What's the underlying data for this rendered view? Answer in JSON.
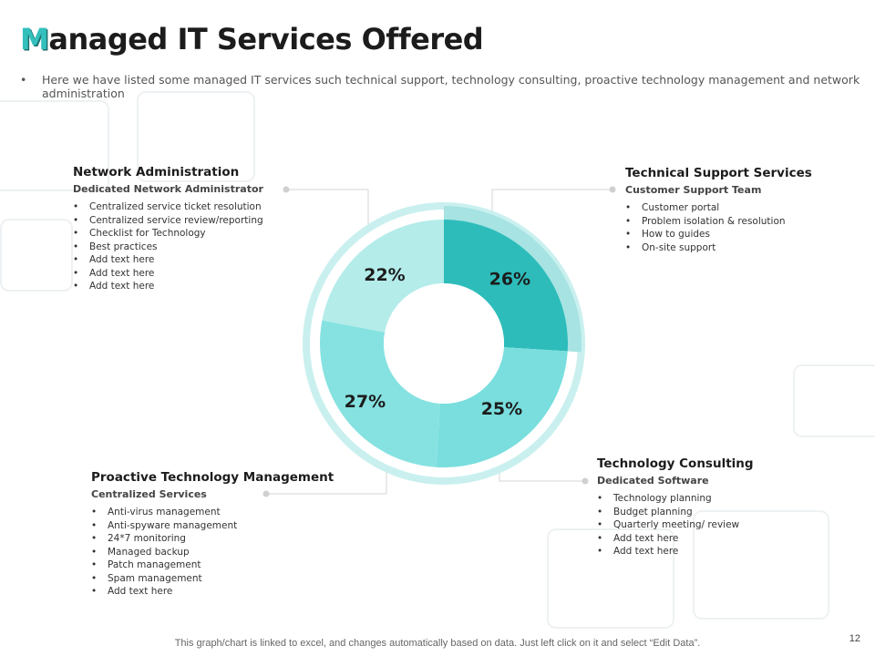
{
  "title": {
    "first_letter": "M",
    "rest": "anaged IT Services Offered"
  },
  "intro": {
    "bullet": "•",
    "text": "Here we have listed some managed IT services such technical support, technology consulting, proactive technology management and network administration"
  },
  "chart_data": {
    "type": "pie",
    "variant": "donut",
    "title": "",
    "categories": [
      "Technical Support Services",
      "Technology Consulting",
      "Proactive Technology Management",
      "Network Administration"
    ],
    "values": [
      26,
      25,
      27,
      22
    ],
    "labels": [
      "26%",
      "25%",
      "27%",
      "22%"
    ],
    "colors": [
      "#2dbcba",
      "#79dedd",
      "#86e2e1",
      "#b4ecea"
    ]
  },
  "sections": {
    "network": {
      "heading": "Network Administration",
      "subheading": "Dedicated Network Administrator",
      "items": [
        "Centralized service ticket resolution",
        "Centralized service review/reporting",
        "Checklist for Technology",
        "Best practices",
        "Add text here",
        "Add text here",
        "Add text here"
      ]
    },
    "support": {
      "heading": "Technical Support Services",
      "subheading": "Customer Support Team",
      "items": [
        "Customer portal",
        "Problem isolation & resolution",
        "How to guides",
        "On-site support"
      ]
    },
    "consulting": {
      "heading": "Technology Consulting",
      "subheading": "Dedicated Software",
      "items": [
        "Technology planning",
        "Budget planning",
        "Quarterly meeting/ review",
        "Add text here",
        "Add text here"
      ]
    },
    "proactive": {
      "heading": "Proactive Technology Management",
      "subheading": "Centralized Services",
      "items": [
        "Anti-virus management",
        "Anti-spyware management",
        "24*7 monitoring",
        "Managed backup",
        "Patch management",
        "Spam management",
        "Add text here"
      ]
    }
  },
  "footer": "This graph/chart is linked to excel, and changes automatically based on data. Just left click on it and select “Edit Data”.",
  "page_number": "12"
}
